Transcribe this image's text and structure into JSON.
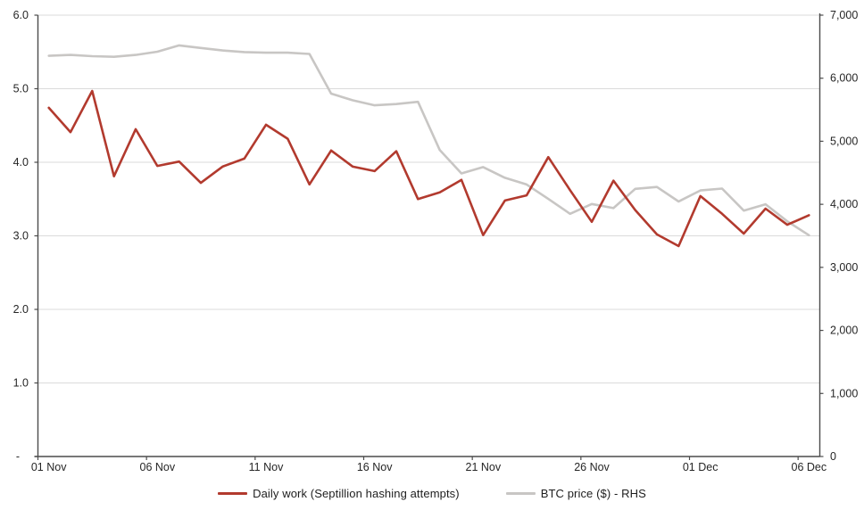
{
  "chart_data": {
    "type": "line",
    "dates": [
      "01 Nov",
      "02 Nov",
      "03 Nov",
      "04 Nov",
      "05 Nov",
      "06 Nov",
      "07 Nov",
      "08 Nov",
      "09 Nov",
      "10 Nov",
      "11 Nov",
      "12 Nov",
      "13 Nov",
      "14 Nov",
      "15 Nov",
      "16 Nov",
      "17 Nov",
      "18 Nov",
      "19 Nov",
      "20 Nov",
      "21 Nov",
      "22 Nov",
      "23 Nov",
      "24 Nov",
      "25 Nov",
      "26 Nov",
      "27 Nov",
      "28 Nov",
      "29 Nov",
      "30 Nov",
      "01 Dec",
      "02 Dec",
      "03 Dec",
      "04 Dec",
      "05 Dec",
      "06 Dec"
    ],
    "x_tick_labels": [
      "01 Nov",
      "06 Nov",
      "11 Nov",
      "16 Nov",
      "21 Nov",
      "26 Nov",
      "01 Dec",
      "06 Dec"
    ],
    "series": [
      {
        "name": "Daily work (Septillion hashing attempts)",
        "axis": "left",
        "color": "#B23A2E",
        "values": [
          4.74,
          4.41,
          4.97,
          3.81,
          4.45,
          3.95,
          4.01,
          3.72,
          3.94,
          4.05,
          4.51,
          4.32,
          3.7,
          4.16,
          3.94,
          3.88,
          4.15,
          3.5,
          3.59,
          3.76,
          3.01,
          3.48,
          3.55,
          4.07,
          3.62,
          3.19,
          3.75,
          3.35,
          3.02,
          2.86,
          3.54,
          3.3,
          3.03,
          3.37,
          3.15,
          3.28
        ]
      },
      {
        "name": "BTC price ($) - RHS",
        "axis": "right",
        "color": "#C8C6C4",
        "values": [
          6355,
          6370,
          6350,
          6340,
          6370,
          6420,
          6520,
          6480,
          6440,
          6415,
          6405,
          6405,
          6385,
          5755,
          5650,
          5570,
          5590,
          5625,
          4860,
          4490,
          4590,
          4420,
          4315,
          4085,
          3850,
          4005,
          3940,
          4245,
          4275,
          4045,
          4220,
          4250,
          3900,
          4000,
          3730,
          3510
        ]
      }
    ],
    "left_axis": {
      "min": 0,
      "max": 6,
      "tick_labels": [
        "6.0",
        "5.0",
        "4.0",
        "3.0",
        "2.0",
        "1.0",
        "-"
      ],
      "tick_values": [
        6,
        5,
        4,
        3,
        2,
        1,
        0
      ]
    },
    "right_axis": {
      "min": 0,
      "max": 7000,
      "tick_labels": [
        "7,000",
        "6,000",
        "5,000",
        "4,000",
        "3,000",
        "2,000",
        "1,000",
        "0"
      ],
      "tick_values": [
        7000,
        6000,
        5000,
        4000,
        3000,
        2000,
        1000,
        0
      ]
    },
    "grid": true,
    "legend_position": "bottom"
  },
  "legend": {
    "items": [
      {
        "label": "Daily work (Septillion hashing attempts)",
        "color": "#B23A2E"
      },
      {
        "label": "BTC price ($) - RHS",
        "color": "#C8C6C4"
      }
    ]
  },
  "style_colors": {
    "gridline": "#DBDBDB",
    "axis_line": "#4C4C4C",
    "tick": "#4C4C4C",
    "label_text": "#262626"
  }
}
